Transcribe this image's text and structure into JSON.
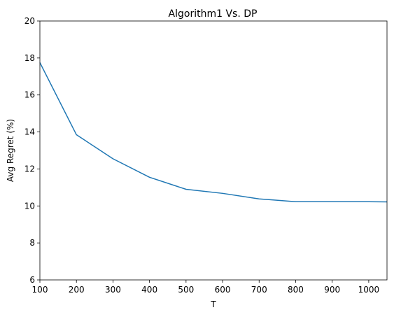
{
  "chart_data": {
    "type": "line",
    "title": "Algorithm1 Vs. DP",
    "xlabel": "T",
    "ylabel": "Avg Regret (%)",
    "xlim": [
      100,
      1050
    ],
    "ylim": [
      6,
      20
    ],
    "x_ticks": [
      100,
      200,
      300,
      400,
      500,
      600,
      700,
      800,
      900,
      1000
    ],
    "y_ticks": [
      6,
      8,
      10,
      12,
      14,
      16,
      18,
      20
    ],
    "grid": false,
    "series": [
      {
        "color": "#1f77b4",
        "x": [
          100,
          200,
          300,
          400,
          500,
          600,
          700,
          800,
          900,
          1000,
          1050
        ],
        "y": [
          17.75,
          13.85,
          12.55,
          11.55,
          10.9,
          10.68,
          10.38,
          10.23,
          10.23,
          10.23,
          10.22
        ]
      }
    ]
  }
}
